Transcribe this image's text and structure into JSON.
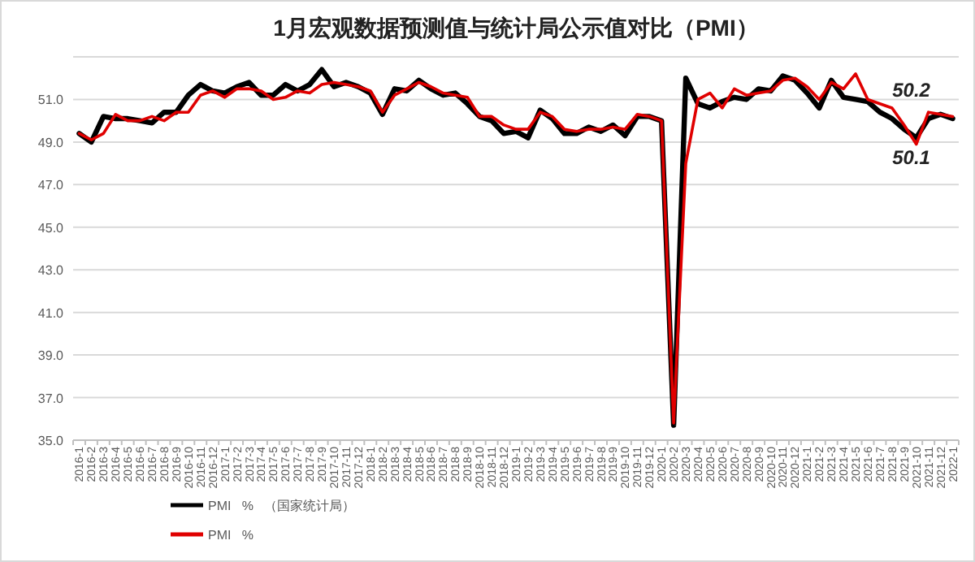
{
  "chart_data": {
    "type": "line",
    "title": "1月宏观数据预测值与统计局公示值对比（PMI）",
    "categories": [
      "2016-1",
      "2016-2",
      "2016-3",
      "2016-4",
      "2016-5",
      "2016-6",
      "2016-7",
      "2016-8",
      "2016-9",
      "2016-10",
      "2016-11",
      "2016-12",
      "2017-1",
      "2017-2",
      "2017-3",
      "2017-4",
      "2017-5",
      "2017-6",
      "2017-7",
      "2017-8",
      "2017-9",
      "2017-10",
      "2017-11",
      "2017-12",
      "2018-1",
      "2018-2",
      "2018-3",
      "2018-4",
      "2018-5",
      "2018-6",
      "2018-7",
      "2018-8",
      "2018-9",
      "2018-10",
      "2018-11",
      "2018-12",
      "2019-1",
      "2019-2",
      "2019-3",
      "2019-4",
      "2019-5",
      "2019-6",
      "2019-7",
      "2019-8",
      "2019-9",
      "2019-10",
      "2019-11",
      "2019-12",
      "2020-1",
      "2020-2",
      "2020-3",
      "2020-4",
      "2020-5",
      "2020-6",
      "2020-7",
      "2020-8",
      "2020-9",
      "2020-10",
      "2020-11",
      "2020-12",
      "2021-1",
      "2021-2",
      "2021-3",
      "2021-4",
      "2021-5",
      "2021-6",
      "2021-7",
      "2021-8",
      "2021-9",
      "2021-10",
      "2021-11",
      "2021-12",
      "2022-1"
    ],
    "series": [
      {
        "name": "PMI   %   （国家统计局）",
        "color": "#000000",
        "values": [
          49.4,
          49.0,
          50.2,
          50.1,
          50.1,
          50.0,
          49.9,
          50.4,
          50.4,
          51.2,
          51.7,
          51.4,
          51.3,
          51.6,
          51.8,
          51.2,
          51.2,
          51.7,
          51.4,
          51.7,
          52.4,
          51.6,
          51.8,
          51.6,
          51.3,
          50.3,
          51.5,
          51.4,
          51.9,
          51.5,
          51.2,
          51.3,
          50.8,
          50.2,
          50.0,
          49.4,
          49.5,
          49.2,
          50.5,
          50.1,
          49.4,
          49.4,
          49.7,
          49.5,
          49.8,
          49.3,
          50.2,
          50.2,
          50.0,
          35.7,
          52.0,
          50.8,
          50.6,
          50.9,
          51.1,
          51.0,
          51.5,
          51.4,
          52.1,
          51.9,
          51.3,
          50.6,
          51.9,
          51.1,
          51.0,
          50.9,
          50.4,
          50.1,
          49.6,
          49.2,
          50.1,
          50.3,
          50.1
        ]
      },
      {
        "name": "PMI   %",
        "color": "#e00000",
        "values": [
          49.4,
          49.1,
          49.4,
          50.3,
          50.0,
          50.0,
          50.2,
          50.0,
          50.4,
          50.4,
          51.2,
          51.4,
          51.1,
          51.5,
          51.5,
          51.4,
          51.0,
          51.1,
          51.4,
          51.3,
          51.7,
          51.8,
          51.7,
          51.6,
          51.4,
          50.4,
          51.2,
          51.5,
          51.8,
          51.6,
          51.3,
          51.2,
          51.1,
          50.2,
          50.2,
          49.8,
          49.6,
          49.6,
          50.4,
          50.2,
          49.6,
          49.5,
          49.6,
          49.6,
          49.7,
          49.6,
          50.3,
          50.2,
          50.0,
          35.8,
          48.0,
          51.0,
          51.3,
          50.6,
          51.5,
          51.2,
          51.3,
          51.4,
          51.9,
          52.0,
          51.6,
          51.0,
          51.8,
          51.5,
          52.2,
          51.0,
          50.8,
          50.6,
          49.8,
          48.9,
          50.4,
          50.3,
          50.2
        ]
      }
    ],
    "ylim": [
      35,
      53
    ],
    "yticks": [
      {
        "value": 35,
        "label": "35.0"
      },
      {
        "value": 37,
        "label": "37.0"
      },
      {
        "value": 39,
        "label": "39.0"
      },
      {
        "value": 41,
        "label": "41.0"
      },
      {
        "value": 43,
        "label": "43.0"
      },
      {
        "value": 45,
        "label": "45.0"
      },
      {
        "value": 47,
        "label": "47.0"
      },
      {
        "value": 49,
        "label": "49.0"
      },
      {
        "value": 51,
        "label": "51.0"
      },
      {
        "value": 53,
        "label": null
      }
    ],
    "grid": "y",
    "legend": "bottom left",
    "marker": "none",
    "line_style": "solid",
    "annotations": [
      {
        "text": "50.2",
        "x": "2021-12",
        "y": 50.2
      },
      {
        "text": "50.1",
        "x": "2021-12",
        "y": 50.1
      }
    ]
  }
}
